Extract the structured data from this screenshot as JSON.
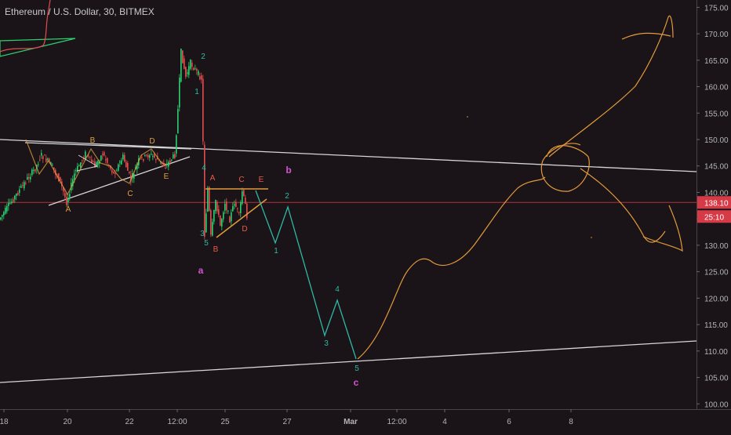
{
  "header": {
    "title": "Ethereum / U.S. Dollar, 30, BITMEX"
  },
  "price_badge": {
    "price": "138.10",
    "countdown": "25:10"
  },
  "colors": {
    "background": "#1a1418",
    "axis_text": "#b4b4b4",
    "candle_up": "#2bd16f",
    "candle_down": "#e24d4d",
    "trendline": "#d6d6d6",
    "orange": "#e39a3b",
    "teal": "#2fb8a4",
    "magenta": "#d354d3",
    "price_line": "#b3303a",
    "badge": "#d63a47",
    "wave_red": "#ec5a4a",
    "wave_yellow": "#e0a040"
  },
  "chart_data": {
    "type": "candlestick",
    "title": "Ethereum / U.S. Dollar, 30, BITMEX",
    "y_axis": {
      "ticks": [
        "175.00",
        "170.00",
        "165.00",
        "160.00",
        "155.00",
        "150.00",
        "145.00",
        "140.00",
        "135.00",
        "130.00",
        "125.00",
        "120.00",
        "115.00",
        "110.00",
        "105.00",
        "100.00"
      ],
      "range": [
        99,
        178
      ]
    },
    "x_axis": {
      "ticks": [
        "18",
        "20",
        "22",
        "12:00",
        "25",
        "27",
        "Mar",
        "12:00",
        "4",
        "6",
        "8"
      ]
    },
    "last_price": 138.1,
    "projection_path": [
      {
        "t": 27,
        "p": 140.7,
        "label": ""
      },
      {
        "t": 29.1,
        "p": 131.0,
        "label": "1"
      },
      {
        "t": 30.5,
        "p": 137.8,
        "label": "2"
      },
      {
        "t": 33.1,
        "p": 113.8,
        "label": "3"
      },
      {
        "t": 33.9,
        "p": 120.2,
        "label": "4"
      },
      {
        "t": 35.0,
        "p": 109.6,
        "label": "5"
      }
    ],
    "wave_labels": [
      {
        "text": "a",
        "t": 15.7,
        "p": 126.5,
        "color": "magenta"
      },
      {
        "text": "b",
        "t": 23.0,
        "p": 146.4,
        "color": "magenta"
      },
      {
        "text": "c",
        "t": 33.9,
        "p": 106.8,
        "color": "magenta"
      },
      {
        "text": "A",
        "t": 4.2,
        "p": 138.9,
        "color": "yellow"
      },
      {
        "text": "B",
        "t": 5.7,
        "p": 152.2,
        "color": "yellow"
      },
      {
        "text": "C",
        "t": 8.0,
        "p": 141.4,
        "color": "yellow"
      },
      {
        "text": "D",
        "t": 9.5,
        "p": 151.6,
        "color": "yellow"
      },
      {
        "text": "E",
        "t": 10.3,
        "p": 143.0,
        "color": "yellow"
      },
      {
        "text": "1",
        "t": 12.3,
        "p": 159.3,
        "color": "teal"
      },
      {
        "text": "2",
        "t": 12.7,
        "p": 169.1,
        "color": "teal"
      },
      {
        "text": "3",
        "t": 12.8,
        "p": 132.0,
        "color": "teal"
      },
      {
        "text": "4",
        "t": 12.8,
        "p": 145.5,
        "color": "teal"
      },
      {
        "text": "5",
        "t": 12.8,
        "p": 130.6,
        "color": "teal"
      },
      {
        "text": "A",
        "t": 13.2,
        "p": 143.1,
        "color": "red"
      },
      {
        "text": "B",
        "t": 13.6,
        "p": 129.8,
        "color": "red"
      },
      {
        "text": "C",
        "t": 15.2,
        "p": 143.1,
        "color": "red"
      },
      {
        "text": "D",
        "t": 15.4,
        "p": 133.0,
        "color": "red"
      },
      {
        "text": "E",
        "t": 16.4,
        "p": 143.1,
        "color": "red"
      }
    ]
  }
}
